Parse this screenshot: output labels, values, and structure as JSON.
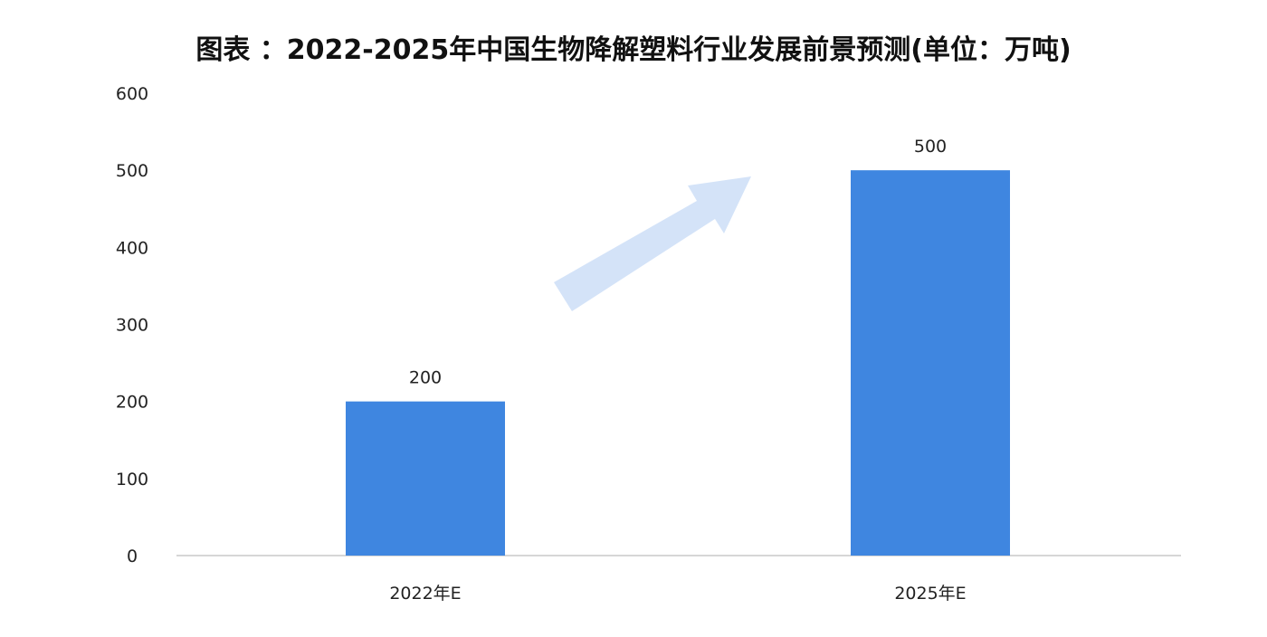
{
  "chart_data": {
    "type": "bar",
    "title": "图表 ：2022-2025年中国生物降解塑料行业发展前景预测(单位：万吨)",
    "categories": [
      "2022年E",
      "2025年E"
    ],
    "values": [
      200,
      500
    ],
    "data_labels": [
      "200",
      "500"
    ],
    "xlabel": "",
    "ylabel": "",
    "ylim": [
      0,
      600
    ],
    "yticks": [
      "0",
      "100",
      "200",
      "300",
      "400",
      "500",
      "600"
    ],
    "grid": false,
    "legend": "none",
    "bar_color": "#3f86e0",
    "decoration": "light-blue-upward-arrow"
  }
}
